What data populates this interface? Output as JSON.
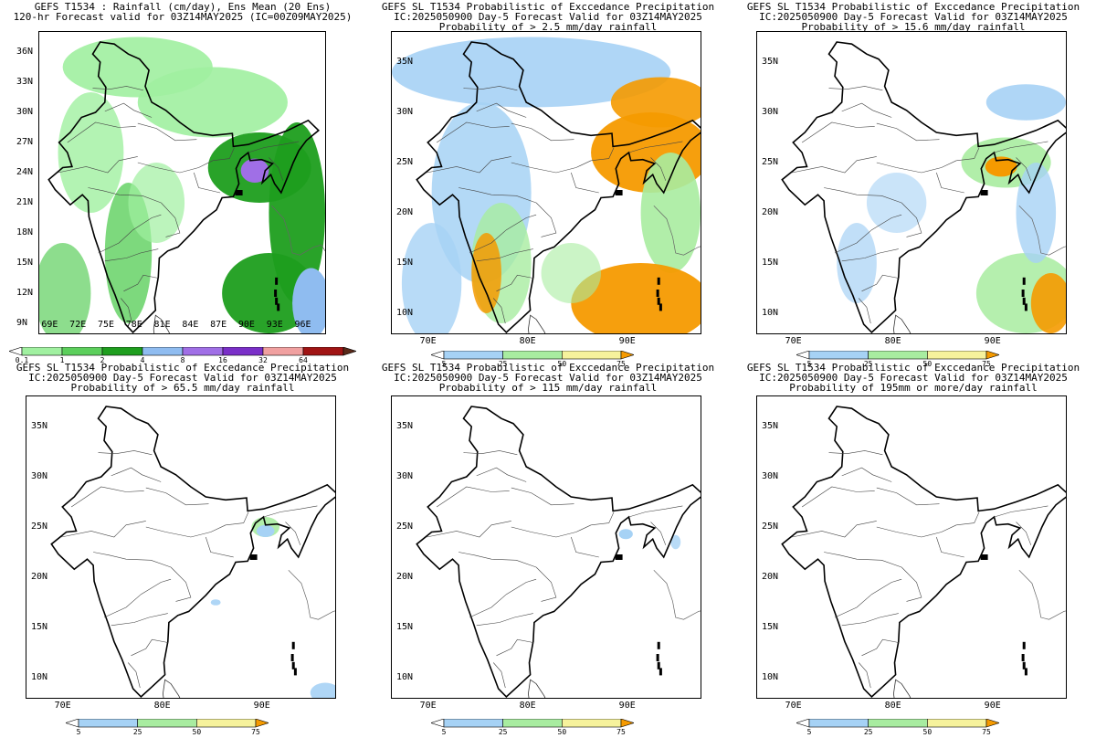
{
  "panels": [
    {
      "title_lines": [
        "GEFS T1534 : Rainfall (cm/day), Ens Mean (20 Ens)",
        "120-hr Forecast valid for 03Z14MAY2025 (IC=00Z09MAY2025)"
      ],
      "lat_labels": [
        "36N",
        "33N",
        "30N",
        "27N",
        "24N",
        "21N",
        "18N",
        "15N",
        "12N",
        "9N"
      ],
      "lon_labels": [
        "69E",
        "72E",
        "75E",
        "78E",
        "81E",
        "84E",
        "87E",
        "90E",
        "93E",
        "96E"
      ],
      "colorbar_labels": [
        "0.1",
        "1",
        "2",
        "4",
        "8",
        "16",
        "32",
        "64"
      ],
      "colorbar_colors": [
        "#ffffff",
        "#a0f0a0",
        "#5ccf5c",
        "#1e9e1e",
        "#8fbcf0",
        "#a06fe6",
        "#7a2fc8",
        "#f0a0a0",
        "#a01414",
        "#5a2a1a"
      ],
      "shading": "mean-rainfall"
    },
    {
      "title_lines": [
        "GEFS SL T1534 Probabilistic of Exccedance Precipitation",
        "IC:2025050900 Day-5 Forecast Valid for 03Z14MAY2025",
        "Probability of > 2.5 mm/day rainfall"
      ],
      "lat_labels": [
        "35N",
        "30N",
        "25N",
        "20N",
        "15N",
        "10N"
      ],
      "lon_labels": [
        "70E",
        "80E",
        "90E"
      ],
      "colorbar_labels": [
        "5",
        "25",
        "50",
        "75"
      ],
      "colorbar_colors": [
        "#ffffff",
        "#a6d2f5",
        "#a8eca0",
        "#f6f29c",
        "#f59a00"
      ],
      "shading": "prob-2.5"
    },
    {
      "title_lines": [
        "GEFS SL T1534 Probabilistic of Exccedance Precipitation",
        "IC:2025050900 Day-5 Forecast Valid for 03Z14MAY2025",
        "Probability of > 15.6 mm/day rainfall"
      ],
      "lat_labels": [
        "35N",
        "30N",
        "25N",
        "20N",
        "15N",
        "10N"
      ],
      "lon_labels": [
        "70E",
        "80E",
        "90E"
      ],
      "colorbar_labels": [
        "5",
        "25",
        "50",
        "75"
      ],
      "colorbar_colors": [
        "#ffffff",
        "#a6d2f5",
        "#a8eca0",
        "#f6f29c",
        "#f59a00"
      ],
      "shading": "prob-15.6"
    },
    {
      "title_lines": [
        "GEFS SL T1534 Probabilistic of Exccedance Precipitation",
        "IC:2025050900 Day-5 Forecast Valid for 03Z14MAY2025",
        "Probability of > 65.5 mm/day rainfall"
      ],
      "lat_labels": [
        "35N",
        "30N",
        "25N",
        "20N",
        "15N",
        "10N"
      ],
      "lon_labels": [
        "70E",
        "80E",
        "90E"
      ],
      "colorbar_labels": [
        "5",
        "25",
        "50",
        "75"
      ],
      "colorbar_colors": [
        "#ffffff",
        "#a6d2f5",
        "#a8eca0",
        "#f6f29c",
        "#f59a00"
      ],
      "shading": "prob-65.5"
    },
    {
      "title_lines": [
        "GEFS SL T1534 Probabilistic of Exccedance Precipitation",
        "IC:2025050900 Day-5 Forecast Valid for 03Z14MAY2025",
        "Probability of > 115 mm/day rainfall"
      ],
      "lat_labels": [
        "35N",
        "30N",
        "25N",
        "20N",
        "15N",
        "10N"
      ],
      "lon_labels": [
        "70E",
        "80E",
        "90E"
      ],
      "colorbar_labels": [
        "5",
        "25",
        "50",
        "75"
      ],
      "colorbar_colors": [
        "#ffffff",
        "#a6d2f5",
        "#a8eca0",
        "#f6f29c",
        "#f59a00"
      ],
      "shading": "prob-115"
    },
    {
      "title_lines": [
        "GEFS SL T1534 Probabilistic of Exccedance Precipitation",
        "IC:2025050900 Day-5 Forecast Valid for 03Z14MAY2025",
        "Probability of 195mm or more/day rainfall"
      ],
      "lat_labels": [
        "35N",
        "30N",
        "25N",
        "20N",
        "15N",
        "10N"
      ],
      "lon_labels": [
        "70E",
        "80E",
        "90E"
      ],
      "colorbar_labels": [
        "5",
        "25",
        "50",
        "75"
      ],
      "colorbar_colors": [
        "#ffffff",
        "#a6d2f5",
        "#a8eca0",
        "#f6f29c",
        "#f59a00"
      ],
      "shading": "prob-195"
    }
  ]
}
